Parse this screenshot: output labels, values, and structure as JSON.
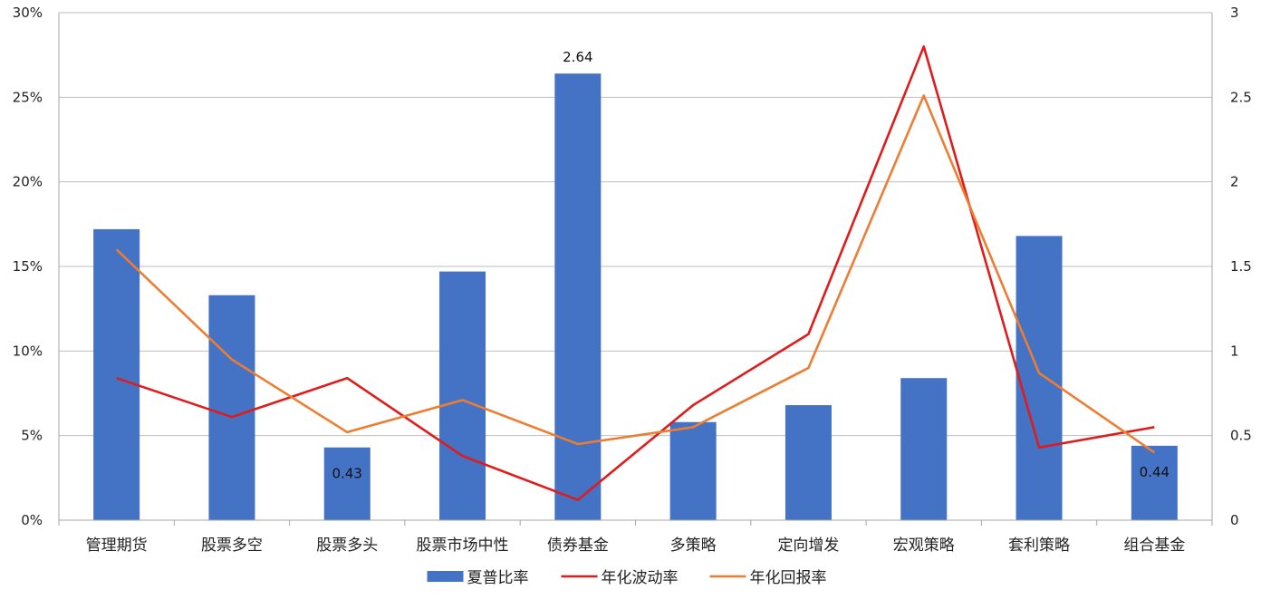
{
  "chart_data": {
    "type": "bar",
    "categories": [
      "管理期货",
      "股票多空",
      "股票多头",
      "股票市场中性",
      "债券基金",
      "多策略",
      "定向增发",
      "宏观策略",
      "套利策略",
      "组合基金"
    ],
    "series": [
      {
        "name": "夏普比率",
        "type": "bar",
        "axis": "right",
        "color": "#4472C4",
        "values": [
          1.72,
          1.33,
          0.43,
          1.47,
          2.64,
          0.58,
          0.68,
          0.84,
          1.68,
          0.44
        ]
      },
      {
        "name": "年化波动率",
        "type": "line",
        "axis": "left",
        "color": "#E01B1B",
        "values": [
          0.084,
          0.061,
          0.084,
          0.038,
          0.012,
          0.068,
          0.11,
          0.28,
          0.043,
          0.055
        ]
      },
      {
        "name": "年化回报率",
        "type": "line",
        "axis": "left",
        "color": "#ED7D31",
        "values": [
          0.16,
          0.095,
          0.052,
          0.071,
          0.045,
          0.055,
          0.09,
          0.251,
          0.087,
          0.04
        ]
      }
    ],
    "y_left": {
      "ylim": [
        0,
        0.3
      ],
      "ticks": [
        0,
        0.05,
        0.1,
        0.15,
        0.2,
        0.25,
        0.3
      ],
      "tick_labels": [
        "0%",
        "5%",
        "10%",
        "15%",
        "20%",
        "25%",
        "30%"
      ]
    },
    "y_right": {
      "ylim": [
        0,
        3
      ],
      "ticks": [
        0,
        0.5,
        1,
        1.5,
        2,
        2.5,
        3
      ],
      "tick_labels": [
        "0",
        "0.5",
        "1",
        "1.5",
        "2",
        "2.5",
        "3"
      ]
    },
    "data_labels": [
      {
        "series": "夏普比率",
        "index": 2,
        "text": "0.43",
        "placement": "inside"
      },
      {
        "series": "夏普比率",
        "index": 4,
        "text": "2.64",
        "placement": "above"
      },
      {
        "series": "夏普比率",
        "index": 9,
        "text": "0.44",
        "placement": "inside"
      }
    ],
    "grid": true,
    "legend": "bottom-center",
    "title": "",
    "xlabel": "",
    "ylabel": ""
  }
}
